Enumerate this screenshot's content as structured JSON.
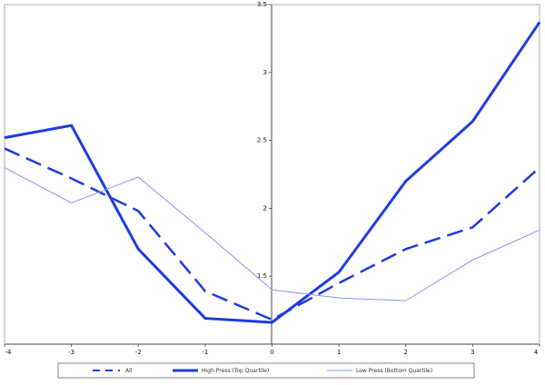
{
  "chart_data": {
    "type": "line",
    "x": [
      -4,
      -3,
      -2,
      -1,
      0,
      1,
      2,
      3,
      4
    ],
    "xlim": [
      -4,
      4
    ],
    "ylim": [
      1,
      3.5
    ],
    "x_ticks": [
      "-4",
      "-3",
      "-2",
      "-1",
      "0",
      "1",
      "2",
      "3",
      "4"
    ],
    "y_ticks": [
      {
        "value": 1.5,
        "label": "1.5"
      },
      {
        "value": 2,
        "label": "2"
      },
      {
        "value": 2.5,
        "label": "2.5"
      },
      {
        "value": 3,
        "label": "3"
      },
      {
        "value": 3.5,
        "label": "3.5"
      }
    ],
    "grid": false,
    "legend_position": "bottom",
    "series": [
      {
        "name": "All",
        "values": [
          2.44,
          2.22,
          1.98,
          1.39,
          1.18,
          1.45,
          1.7,
          1.86,
          2.3
        ],
        "color": "#1f3be0",
        "style": "dashed"
      },
      {
        "name": "High Press (Top Quartile)",
        "values": [
          2.52,
          2.61,
          1.7,
          1.19,
          1.16,
          1.53,
          2.2,
          2.64,
          3.37
        ],
        "color": "#1f3be0",
        "style": "solid-thick"
      },
      {
        "name": "Low Press (Bottom Quartile)",
        "values": [
          2.3,
          2.04,
          2.23,
          1.82,
          1.4,
          1.34,
          1.32,
          1.62,
          1.84
        ],
        "color": "#8a93ee",
        "style": "solid-thin"
      }
    ]
  }
}
